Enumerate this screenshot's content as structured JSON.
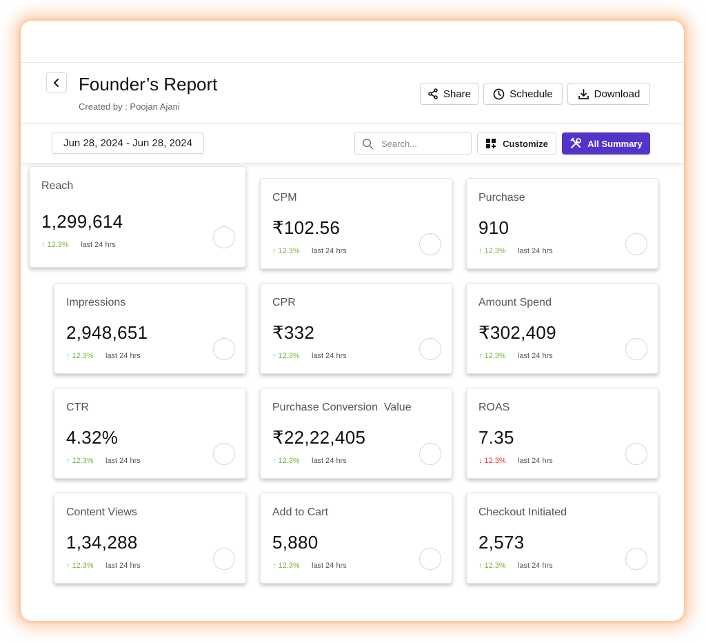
{
  "header": {
    "title": "Founder’s Report",
    "created_by": "Created by  : Poojan Ajani",
    "share_label": "Share",
    "schedule_label": "Schedule",
    "download_label": "Download"
  },
  "toolbar": {
    "date_range": "Jun 28, 2024 - Jun 28, 2024",
    "search_placeholder": "Search...",
    "customize_label": "Customize",
    "summary_label": "All Summary"
  },
  "colors": {
    "accent": "#5433c9",
    "up": "#7cb342",
    "down": "#e53935"
  },
  "cards": [
    {
      "label": "Reach",
      "value": "1,299,614",
      "change": "12.3%",
      "direction": "up",
      "period": "last 24 hrs"
    },
    {
      "label": "CPM",
      "value": "₹102.56",
      "change": "12.3%",
      "direction": "up",
      "period": "last 24 hrs"
    },
    {
      "label": "Purchase",
      "value": "910",
      "change": "12.3%",
      "direction": "up",
      "period": "last 24 hrs"
    },
    {
      "label": "Impressions",
      "value": "2,948,651",
      "change": "12.3%",
      "direction": "up",
      "period": "last 24 hrs"
    },
    {
      "label": "CPR",
      "value": "₹332",
      "change": "12.3%",
      "direction": "up",
      "period": "last 24 hrs"
    },
    {
      "label": "Amount Spend",
      "value": "₹302,409",
      "change": "12.3%",
      "direction": "up",
      "period": "last 24 hrs"
    },
    {
      "label": "CTR",
      "value": "4.32%",
      "change": "12.3%",
      "direction": "up",
      "period": "last 24 hrs"
    },
    {
      "label": "Purchase Conversion  Value",
      "value": "₹22,22,405",
      "change": "12.3%",
      "direction": "up",
      "period": "last 24 hrs"
    },
    {
      "label": "ROAS",
      "value": "7.35",
      "change": "12.3%",
      "direction": "down",
      "period": "last 24 hrs"
    },
    {
      "label": "Content Views",
      "value": "1,34,288",
      "change": "12.3%",
      "direction": "up",
      "period": "last 24 hrs"
    },
    {
      "label": "Add to Cart",
      "value": "5,880",
      "change": "12.3%",
      "direction": "up",
      "period": "last 24 hrs"
    },
    {
      "label": "Checkout Initiated",
      "value": "2,573",
      "change": "12.3%",
      "direction": "up",
      "period": "last 24 hrs"
    }
  ]
}
